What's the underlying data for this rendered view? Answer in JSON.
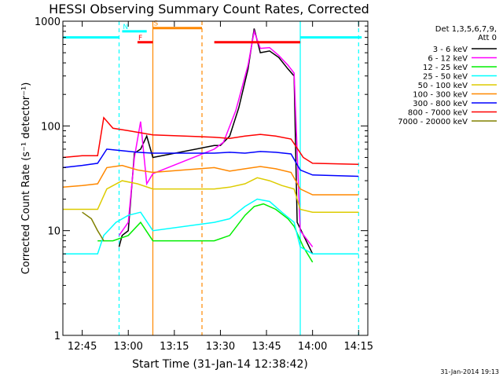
{
  "chart_data": {
    "type": "line",
    "title": "HESSI Observing Summary Count Rates, Corrected",
    "xlabel": "Start Time (31-Jan-14 12:38:42)",
    "ylabel": "Corrected Count Rate (s⁻¹ detector⁻¹)",
    "y_scale": "log",
    "ylim": [
      1,
      1000
    ],
    "xlim": [
      "12:38:42",
      "14:18"
    ],
    "x_ticks": [
      "12:45",
      "13:00",
      "13:15",
      "13:30",
      "13:45",
      "14:00",
      "14:15"
    ],
    "y_ticks": [
      "1",
      "10",
      "100",
      "1000"
    ],
    "legend_header": [
      "Det 1,3,5,6,7,9,",
      "Att 0"
    ],
    "timestamp": "31-Jan-2014 19:13",
    "gap_label": "",
    "series": [
      {
        "name": "3 - 6 keV",
        "color": "#000000",
        "points": [
          [
            "12:57:00",
            7
          ],
          [
            "12:58:00",
            9
          ],
          [
            "13:00:00",
            10
          ],
          [
            "13:02:00",
            55
          ],
          [
            "13:04:00",
            60
          ],
          [
            "13:06:00",
            80
          ],
          [
            "13:08:00",
            50
          ],
          [
            "13:28:00",
            65
          ],
          [
            "13:30:00",
            65
          ],
          [
            "13:33:00",
            80
          ],
          [
            "13:36:00",
            150
          ],
          [
            "13:39:00",
            350
          ],
          [
            "13:41:00",
            850
          ],
          [
            "13:43:00",
            500
          ],
          [
            "13:46:00",
            520
          ],
          [
            "13:49:00",
            450
          ],
          [
            "13:52:00",
            350
          ],
          [
            "13:54:00",
            300
          ],
          [
            "13:55:00",
            12
          ],
          [
            "14:00:00",
            6
          ]
        ]
      },
      {
        "name": "6 - 12 keV",
        "color": "#ff00ff",
        "points": [
          [
            "12:57:00",
            9
          ],
          [
            "13:00:00",
            12
          ],
          [
            "13:02:00",
            50
          ],
          [
            "13:04:00",
            110
          ],
          [
            "13:06:00",
            28
          ],
          [
            "13:08:00",
            35
          ],
          [
            "13:28:00",
            60
          ],
          [
            "13:31:00",
            70
          ],
          [
            "13:35:00",
            140
          ],
          [
            "13:39:00",
            380
          ],
          [
            "13:41:00",
            800
          ],
          [
            "13:43:00",
            550
          ],
          [
            "13:46:00",
            560
          ],
          [
            "13:49:00",
            470
          ],
          [
            "13:52:00",
            380
          ],
          [
            "13:54:00",
            320
          ],
          [
            "13:56:00",
            10
          ],
          [
            "14:00:00",
            7
          ]
        ]
      },
      {
        "name": "12 - 25 keV",
        "color": "#00ee00",
        "points": [
          [
            "12:50:00",
            8
          ],
          [
            "12:55:00",
            8
          ],
          [
            "13:00:00",
            9
          ],
          [
            "13:04:00",
            12
          ],
          [
            "13:08:00",
            8
          ],
          [
            "13:28:00",
            8
          ],
          [
            "13:33:00",
            9
          ],
          [
            "13:38:00",
            14
          ],
          [
            "13:41:00",
            17
          ],
          [
            "13:44:00",
            18
          ],
          [
            "13:48:00",
            16
          ],
          [
            "13:52:00",
            13
          ],
          [
            "13:54:00",
            11
          ],
          [
            "13:57:00",
            7
          ],
          [
            "14:00:00",
            5
          ]
        ]
      },
      {
        "name": "25 - 50 keV",
        "color": "#00ffff",
        "points": [
          [
            "12:38:42",
            6
          ],
          [
            "12:45:00",
            6
          ],
          [
            "12:50:00",
            6
          ],
          [
            "12:52:00",
            9
          ],
          [
            "12:56:00",
            12
          ],
          [
            "13:00:00",
            14
          ],
          [
            "13:04:00",
            15
          ],
          [
            "13:08:00",
            10
          ],
          [
            "13:28:00",
            12
          ],
          [
            "13:33:00",
            13
          ],
          [
            "13:38:00",
            17
          ],
          [
            "13:42:00",
            20
          ],
          [
            "13:46:00",
            19
          ],
          [
            "13:50:00",
            15
          ],
          [
            "13:54:00",
            12
          ],
          [
            "13:56:00",
            7
          ],
          [
            "14:00:00",
            6
          ],
          [
            "14:15:00",
            6
          ]
        ]
      },
      {
        "name": "50 - 100 keV",
        "color": "#ddcc00",
        "points": [
          [
            "12:38:42",
            16
          ],
          [
            "12:45:00",
            16
          ],
          [
            "12:50:00",
            16
          ],
          [
            "12:53:00",
            25
          ],
          [
            "12:58:00",
            30
          ],
          [
            "13:03:00",
            28
          ],
          [
            "13:08:00",
            25
          ],
          [
            "13:28:00",
            25
          ],
          [
            "13:33:00",
            26
          ],
          [
            "13:38:00",
            28
          ],
          [
            "13:42:00",
            32
          ],
          [
            "13:46:00",
            30
          ],
          [
            "13:50:00",
            27
          ],
          [
            "13:54:00",
            25
          ],
          [
            "13:56:00",
            16
          ],
          [
            "14:00:00",
            15
          ],
          [
            "14:15:00",
            15
          ]
        ]
      },
      {
        "name": "100 - 300 keV",
        "color": "#ff8800",
        "points": [
          [
            "12:38:42",
            26
          ],
          [
            "12:45:00",
            27
          ],
          [
            "12:50:00",
            28
          ],
          [
            "12:53:00",
            40
          ],
          [
            "12:58:00",
            42
          ],
          [
            "13:03:00",
            38
          ],
          [
            "13:08:00",
            36
          ],
          [
            "13:28:00",
            40
          ],
          [
            "13:33:00",
            37
          ],
          [
            "13:38:00",
            39
          ],
          [
            "13:43:00",
            41
          ],
          [
            "13:48:00",
            39
          ],
          [
            "13:53:00",
            36
          ],
          [
            "13:56:00",
            25
          ],
          [
            "14:00:00",
            22
          ],
          [
            "14:15:00",
            22
          ]
        ]
      },
      {
        "name": "300 - 800 keV",
        "color": "#0000ff",
        "points": [
          [
            "12:38:42",
            40
          ],
          [
            "12:45:00",
            42
          ],
          [
            "12:50:00",
            44
          ],
          [
            "12:53:00",
            60
          ],
          [
            "12:58:00",
            58
          ],
          [
            "13:03:00",
            56
          ],
          [
            "13:08:00",
            55
          ],
          [
            "13:28:00",
            55
          ],
          [
            "13:33:00",
            56
          ],
          [
            "13:38:00",
            55
          ],
          [
            "13:43:00",
            57
          ],
          [
            "13:48:00",
            56
          ],
          [
            "13:53:00",
            54
          ],
          [
            "13:56:00",
            38
          ],
          [
            "14:00:00",
            34
          ],
          [
            "14:15:00",
            33
          ]
        ]
      },
      {
        "name": "800 - 7000 keV",
        "color": "#ff0000",
        "points": [
          [
            "12:38:42",
            50
          ],
          [
            "12:45:00",
            52
          ],
          [
            "12:50:00",
            52
          ],
          [
            "12:52:00",
            120
          ],
          [
            "12:55:00",
            95
          ],
          [
            "13:00:00",
            90
          ],
          [
            "13:05:00",
            85
          ],
          [
            "13:08:00",
            82
          ],
          [
            "13:28:00",
            78
          ],
          [
            "13:33:00",
            76
          ],
          [
            "13:38:00",
            80
          ],
          [
            "13:43:00",
            83
          ],
          [
            "13:48:00",
            80
          ],
          [
            "13:53:00",
            75
          ],
          [
            "13:57:00",
            50
          ],
          [
            "14:00:00",
            44
          ],
          [
            "14:15:00",
            43
          ]
        ]
      },
      {
        "name": "7000 - 20000 keV",
        "color": "#808000",
        "points": [
          [
            "12:45:00",
            15
          ],
          [
            "12:48:00",
            13
          ],
          [
            "12:50:00",
            10
          ],
          [
            "12:52:00",
            8
          ]
        ]
      }
    ],
    "markers": [
      {
        "label": "N",
        "color": "#00ffff",
        "start": "12:58:00",
        "end": "13:06:00",
        "value": 800
      },
      {
        "label": "F",
        "color": "#ff0000",
        "start": "13:03:00",
        "end": "13:08:00",
        "value": 630
      },
      {
        "label": "S",
        "color": "#ff8800",
        "start": "13:08:00",
        "end": "13:24:00",
        "value": 860
      },
      {
        "label": "",
        "color": "#00ffff",
        "start": "12:38:42",
        "end": "12:57:00",
        "value": 700
      },
      {
        "label": "",
        "color": "#ff0000",
        "start": "13:28:00",
        "end": "13:56:00",
        "value": 630
      },
      {
        "label": "",
        "color": "#00ffff",
        "start": "13:56:00",
        "end": "14:16:00",
        "value": 700
      }
    ],
    "vlines": [
      {
        "time": "12:57:00",
        "color": "#00ffff",
        "dashed": true
      },
      {
        "time": "13:08:00",
        "color": "#ff8800",
        "dashed": false
      },
      {
        "time": "13:24:00",
        "color": "#ff8800",
        "dashed": true
      },
      {
        "time": "13:56:00",
        "color": "#00ffff",
        "dashed": false
      },
      {
        "time": "14:15:00",
        "color": "#00ffff",
        "dashed": true
      }
    ]
  }
}
